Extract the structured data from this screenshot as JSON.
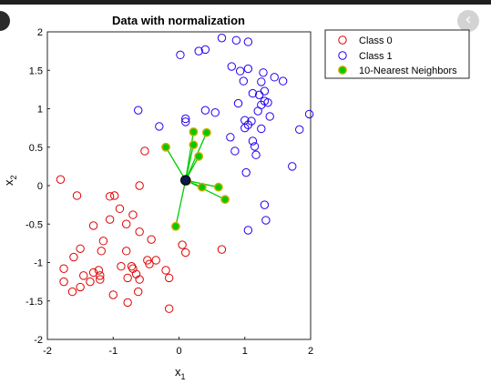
{
  "chart_data": {
    "type": "scatter",
    "title": "Data with normalization",
    "xlabel": "x",
    "xlabel_sub": "1",
    "ylabel": "x",
    "ylabel_sub": "2",
    "xlim": [
      -2,
      2
    ],
    "ylim": [
      -2,
      2
    ],
    "xticks": [
      -2,
      -1,
      0,
      1,
      2
    ],
    "yticks": [
      -2,
      -1.5,
      -1,
      -0.5,
      0,
      0.5,
      1,
      1.5,
      2
    ],
    "xtick_labels": [
      "-2",
      "-1",
      "0",
      "1",
      "2"
    ],
    "ytick_labels": [
      "-2",
      "-1.5",
      "-1",
      "-0.5",
      "0",
      "0.5",
      "1",
      "1.5",
      "2"
    ],
    "grid": false,
    "legend_position": "top-right outside",
    "query_point": [
      0.1,
      0.07
    ],
    "series": [
      {
        "name": "Class 0",
        "color": "#e00000",
        "marker": "open-circle",
        "points": [
          [
            -1.8,
            0.08
          ],
          [
            -1.55,
            -0.13
          ],
          [
            -1.05,
            -0.14
          ],
          [
            -0.98,
            -0.13
          ],
          [
            -0.6,
            0.0
          ],
          [
            -0.52,
            0.45
          ],
          [
            -0.9,
            -0.3
          ],
          [
            -1.05,
            -0.44
          ],
          [
            -1.3,
            -0.52
          ],
          [
            -0.7,
            -0.38
          ],
          [
            -0.6,
            -0.6
          ],
          [
            -0.8,
            -0.5
          ],
          [
            -0.42,
            -0.7
          ],
          [
            -0.8,
            -0.85
          ],
          [
            -1.18,
            -0.85
          ],
          [
            -1.15,
            -0.72
          ],
          [
            -1.5,
            -0.82
          ],
          [
            -1.6,
            -0.93
          ],
          [
            -1.75,
            -1.08
          ],
          [
            -1.75,
            -1.25
          ],
          [
            -1.62,
            -1.38
          ],
          [
            -1.5,
            -1.32
          ],
          [
            -1.45,
            -1.17
          ],
          [
            -1.35,
            -1.25
          ],
          [
            -1.3,
            -1.13
          ],
          [
            -1.2,
            -1.17
          ],
          [
            -1.2,
            -1.22
          ],
          [
            -1.22,
            -1.1
          ],
          [
            -0.88,
            -1.05
          ],
          [
            -0.72,
            -1.05
          ],
          [
            -0.7,
            -1.08
          ],
          [
            -0.65,
            -1.15
          ],
          [
            -0.48,
            -0.97
          ],
          [
            -0.45,
            -1.02
          ],
          [
            -0.35,
            -0.97
          ],
          [
            -0.2,
            -1.1
          ],
          [
            -0.78,
            -1.2
          ],
          [
            -0.6,
            -1.22
          ],
          [
            -0.15,
            -1.2
          ],
          [
            -0.62,
            -1.38
          ],
          [
            -1.0,
            -1.42
          ],
          [
            -0.78,
            -1.52
          ],
          [
            -0.15,
            -1.6
          ],
          [
            0.05,
            -0.77
          ],
          [
            0.1,
            -0.87
          ],
          [
            0.65,
            -0.83
          ]
        ]
      },
      {
        "name": "Class 1",
        "color": "#2200ee",
        "marker": "open-circle",
        "points": [
          [
            0.02,
            1.7
          ],
          [
            0.3,
            1.75
          ],
          [
            0.4,
            1.77
          ],
          [
            0.65,
            1.92
          ],
          [
            0.87,
            1.89
          ],
          [
            1.05,
            1.87
          ],
          [
            0.8,
            1.55
          ],
          [
            0.93,
            1.49
          ],
          [
            1.05,
            1.52
          ],
          [
            1.28,
            1.47
          ],
          [
            1.45,
            1.41
          ],
          [
            1.58,
            1.36
          ],
          [
            0.98,
            1.36
          ],
          [
            1.25,
            1.35
          ],
          [
            1.3,
            1.23
          ],
          [
            1.12,
            1.2
          ],
          [
            1.22,
            1.18
          ],
          [
            1.25,
            1.05
          ],
          [
            1.3,
            1.1
          ],
          [
            1.35,
            1.08
          ],
          [
            1.2,
            0.97
          ],
          [
            0.9,
            1.07
          ],
          [
            0.55,
            0.95
          ],
          [
            0.4,
            0.98
          ],
          [
            0.1,
            0.87
          ],
          [
            0.1,
            0.83
          ],
          [
            -0.3,
            0.77
          ],
          [
            -0.62,
            0.98
          ],
          [
            1.0,
            0.85
          ],
          [
            1.1,
            0.84
          ],
          [
            1.0,
            0.75
          ],
          [
            1.05,
            0.79
          ],
          [
            1.25,
            0.74
          ],
          [
            1.38,
            0.9
          ],
          [
            1.98,
            0.93
          ],
          [
            1.83,
            0.73
          ],
          [
            0.78,
            0.63
          ],
          [
            1.12,
            0.58
          ],
          [
            1.15,
            0.51
          ],
          [
            0.85,
            0.45
          ],
          [
            1.17,
            0.4
          ],
          [
            1.72,
            0.25
          ],
          [
            1.02,
            0.17
          ],
          [
            1.3,
            -0.25
          ],
          [
            1.32,
            -0.45
          ],
          [
            1.05,
            -0.58
          ]
        ]
      },
      {
        "name": "10-Nearest Neighbors",
        "color": "#00cc00",
        "marker": "filled-circle",
        "points": [
          [
            -0.2,
            0.5
          ],
          [
            0.22,
            0.7
          ],
          [
            0.42,
            0.69
          ],
          [
            0.22,
            0.53
          ],
          [
            0.3,
            0.38
          ],
          [
            0.35,
            -0.02
          ],
          [
            0.6,
            -0.02
          ],
          [
            0.7,
            -0.18
          ],
          [
            -0.05,
            -0.53
          ],
          [
            0.12,
            0.06
          ]
        ]
      }
    ]
  }
}
